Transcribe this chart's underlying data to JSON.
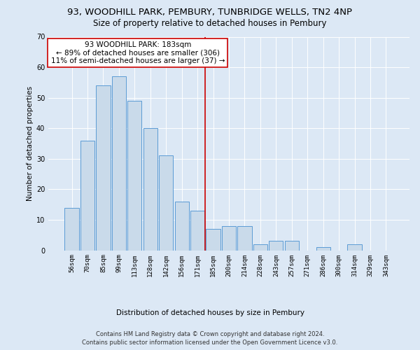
{
  "title": "93, WOODHILL PARK, PEMBURY, TUNBRIDGE WELLS, TN2 4NP",
  "subtitle": "Size of property relative to detached houses in Pembury",
  "xlabel": "Distribution of detached houses by size in Pembury",
  "ylabel": "Number of detached properties",
  "footer_line1": "Contains HM Land Registry data © Crown copyright and database right 2024.",
  "footer_line2": "Contains public sector information licensed under the Open Government Licence v3.0.",
  "bar_labels": [
    "56sqm",
    "70sqm",
    "85sqm",
    "99sqm",
    "113sqm",
    "128sqm",
    "142sqm",
    "156sqm",
    "171sqm",
    "185sqm",
    "200sqm",
    "214sqm",
    "228sqm",
    "243sqm",
    "257sqm",
    "271sqm",
    "286sqm",
    "300sqm",
    "314sqm",
    "329sqm",
    "343sqm"
  ],
  "bar_values": [
    14,
    36,
    54,
    57,
    49,
    40,
    31,
    16,
    13,
    7,
    8,
    8,
    2,
    3,
    3,
    0,
    1,
    0,
    2,
    0,
    0
  ],
  "bar_color": "#c9daea",
  "bar_edge_color": "#5b9bd5",
  "vline_x": 8.5,
  "vline_color": "#cc0000",
  "annotation_line1": "93 WOODHILL PARK: 183sqm",
  "annotation_line2": "← 89% of detached houses are smaller (306)",
  "annotation_line3": "11% of semi-detached houses are larger (37) →",
  "annotation_box_edgecolor": "#cc0000",
  "bg_color": "#dce8f5",
  "grid_color": "#ffffff",
  "ylim": [
    0,
    70
  ],
  "yticks": [
    0,
    10,
    20,
    30,
    40,
    50,
    60,
    70
  ],
  "title_fontsize": 9.5,
  "subtitle_fontsize": 8.5,
  "tick_fontsize": 6.5,
  "ylabel_fontsize": 7.5,
  "xlabel_fontsize": 7.5,
  "footer_fontsize": 6.0,
  "annotation_fontsize": 7.5
}
